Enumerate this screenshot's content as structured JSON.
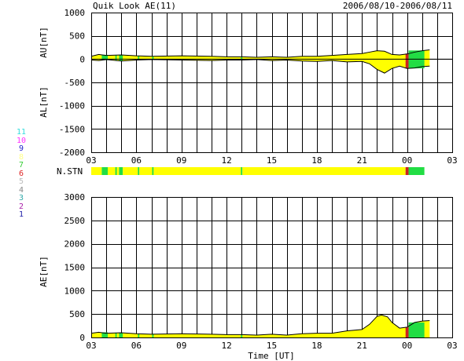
{
  "header": {
    "title": "Quik Look AE(11)",
    "date_range": "2006/08/10-2006/08/11"
  },
  "legend_scale": {
    "entries": [
      {
        "label": "11",
        "color": "#33dddd"
      },
      {
        "label": "10",
        "color": "#ff33ff"
      },
      {
        "label": "9",
        "color": "#2222cc"
      },
      {
        "label": "8",
        "color": "#ffff88"
      },
      {
        "label": "7",
        "color": "#33cc33"
      },
      {
        "label": "6",
        "color": "#dd2222"
      },
      {
        "label": "5",
        "color": "#bbbbbb"
      },
      {
        "label": "4",
        "color": "#888888"
      },
      {
        "label": "3",
        "color": "#33aaaa"
      },
      {
        "label": "2",
        "color": "#aa22aa"
      },
      {
        "label": "1",
        "color": "#2222aa"
      }
    ]
  },
  "colors": {
    "fill": "#ffff00",
    "green": "#22dd44",
    "red": "#cc2222",
    "line": "#000000"
  },
  "chart_data": [
    {
      "type": "area",
      "name": "AU/AL panel",
      "ylabel_upper": "AU[nT]",
      "ylabel_lower": "AL[nT]",
      "ylim": [
        -2000,
        1000
      ],
      "yticks": [
        1000,
        500,
        0,
        -500,
        -1000,
        -1500,
        -2000
      ],
      "xlim": [
        3,
        27
      ],
      "xticks": [
        "03",
        "06",
        "09",
        "12",
        "15",
        "18",
        "21",
        "00",
        "03"
      ],
      "grid": true,
      "x": [
        3.0,
        3.5,
        4.0,
        5.0,
        6.0,
        7.0,
        9.0,
        11.0,
        12.0,
        13.0,
        14.0,
        15.0,
        16.0,
        17.0,
        18.0,
        19.0,
        20.0,
        21.0,
        21.5,
        22.0,
        22.5,
        23.0,
        23.5,
        24.0,
        24.5,
        25.0,
        25.5
      ],
      "au": [
        60,
        100,
        80,
        90,
        70,
        60,
        70,
        60,
        50,
        50,
        40,
        50,
        40,
        60,
        60,
        80,
        100,
        120,
        150,
        180,
        170,
        100,
        90,
        110,
        150,
        180,
        200
      ],
      "al": [
        -20,
        -30,
        -10,
        -40,
        -20,
        -10,
        -20,
        -30,
        -20,
        -20,
        -10,
        -30,
        -20,
        -40,
        -50,
        -30,
        -60,
        -50,
        -100,
        -220,
        -300,
        -200,
        -150,
        -200,
        -190,
        -160,
        -150
      ]
    },
    {
      "type": "band",
      "name": "N.STN",
      "label": "N.STN",
      "xlim": [
        3,
        27
      ],
      "segments": [
        {
          "x0": 3.0,
          "x1": 3.7,
          "value": 8
        },
        {
          "x0": 3.7,
          "x1": 4.1,
          "value": 7
        },
        {
          "x0": 4.1,
          "x1": 4.6,
          "value": 8
        },
        {
          "x0": 4.6,
          "x1": 4.7,
          "value": 7
        },
        {
          "x0": 4.7,
          "x1": 4.85,
          "value": 8
        },
        {
          "x0": 4.85,
          "x1": 5.1,
          "value": 7
        },
        {
          "x0": 5.1,
          "x1": 6.1,
          "value": 8
        },
        {
          "x0": 6.1,
          "x1": 6.2,
          "value": 7
        },
        {
          "x0": 6.2,
          "x1": 7.05,
          "value": 8
        },
        {
          "x0": 7.05,
          "x1": 7.15,
          "value": 7
        },
        {
          "x0": 7.15,
          "x1": 12.95,
          "value": 8
        },
        {
          "x0": 12.95,
          "x1": 13.05,
          "value": 7
        },
        {
          "x0": 13.05,
          "x1": 23.9,
          "value": 8
        },
        {
          "x0": 23.9,
          "x1": 24.1,
          "value": 6
        },
        {
          "x0": 24.1,
          "x1": 25.15,
          "value": 7
        }
      ]
    },
    {
      "type": "area",
      "name": "AE panel",
      "ylabel": "AE[nT]",
      "xlabel": "Time [UT]",
      "ylim": [
        0,
        3000
      ],
      "yticks": [
        3000,
        2500,
        2000,
        1500,
        1000,
        500,
        0
      ],
      "xlim": [
        3,
        27
      ],
      "xticks": [
        "03",
        "06",
        "09",
        "12",
        "15",
        "18",
        "21",
        "00",
        "03"
      ],
      "grid": true,
      "x": [
        3.0,
        3.5,
        4.0,
        5.0,
        6.0,
        7.0,
        9.0,
        11.0,
        12.0,
        13.0,
        14.0,
        15.0,
        16.0,
        17.0,
        18.0,
        19.0,
        20.0,
        21.0,
        21.5,
        22.0,
        22.3,
        22.7,
        23.0,
        23.5,
        24.0,
        24.5,
        25.0,
        25.5
      ],
      "ae": [
        90,
        110,
        90,
        100,
        80,
        70,
        80,
        70,
        60,
        60,
        50,
        70,
        50,
        80,
        90,
        90,
        140,
        170,
        280,
        450,
        480,
        440,
        320,
        200,
        220,
        320,
        350,
        360
      ]
    }
  ]
}
